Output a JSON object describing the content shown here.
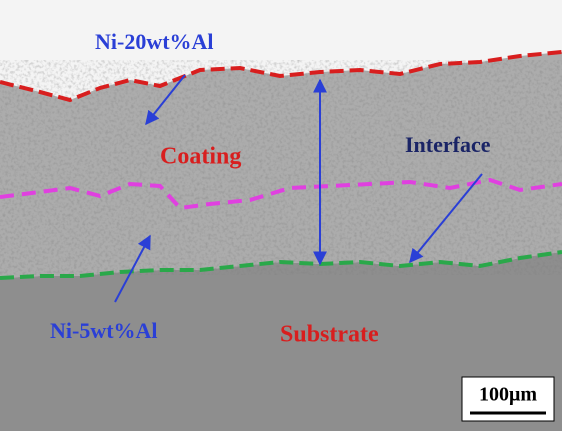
{
  "labels": {
    "top_layer": "Ni-20wt%Al",
    "coating": "Coating",
    "interface": "Interface",
    "bottom_layer": "Ni-5wt%Al",
    "substrate": "Substrate"
  },
  "scale_bar": {
    "label": "100μm"
  }
}
